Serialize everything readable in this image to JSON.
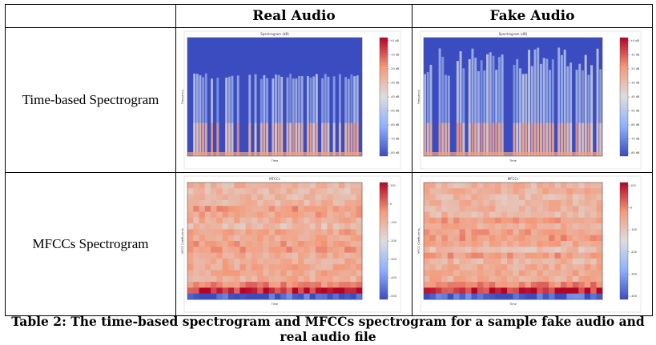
{
  "table": {
    "columns": [
      "",
      "Real Audio",
      "Fake Audio"
    ],
    "rows": [
      {
        "label": "Time-based Spectrogram",
        "real": {
          "title": "Spectrogram (dB)",
          "ylabel": "Frequency",
          "xlabel": "Time",
          "colorbar_ticks": [
            "+0 dB",
            "-10 dB",
            "-20 dB",
            "-30 dB",
            "-40 dB",
            "-50 dB",
            "-60 dB",
            "-70 dB",
            "-80 dB"
          ]
        },
        "fake": {
          "title": "Spectrogram (dB)",
          "ylabel": "Frequency",
          "xlabel": "Time",
          "colorbar_ticks": [
            "+0 dB",
            "-10 dB",
            "-20 dB",
            "-30 dB",
            "-40 dB",
            "-50 dB",
            "-60 dB",
            "-70 dB",
            "-80 dB"
          ]
        }
      },
      {
        "label": "MFCCs Spectrogram",
        "real": {
          "title": "MFCCs",
          "ylabel": "MFCC Coefficients",
          "xlabel": "Time",
          "colorbar_ticks": [
            "100",
            "0",
            "-100",
            "-200",
            "-300",
            "-400",
            "-500"
          ]
        },
        "fake": {
          "title": "MFCCs",
          "ylabel": "MFCC Coefficients",
          "xlabel": "Time",
          "colorbar_ticks": [
            "100",
            "0",
            "-100",
            "-200",
            "-300",
            "-400"
          ]
        }
      }
    ]
  },
  "caption": {
    "line1": "Table 2: The time-based spectrogram and MFCCs spectrogram for a sample fake audio and",
    "line2": "real audio file"
  },
  "colors": {
    "spectro_bg": "#3a4cc0",
    "mfcc_bg": "#f4a184",
    "colorbar_top": "#b40426",
    "colorbar_mid": "#dddddd",
    "colorbar_bottom": "#3b4cc0"
  }
}
